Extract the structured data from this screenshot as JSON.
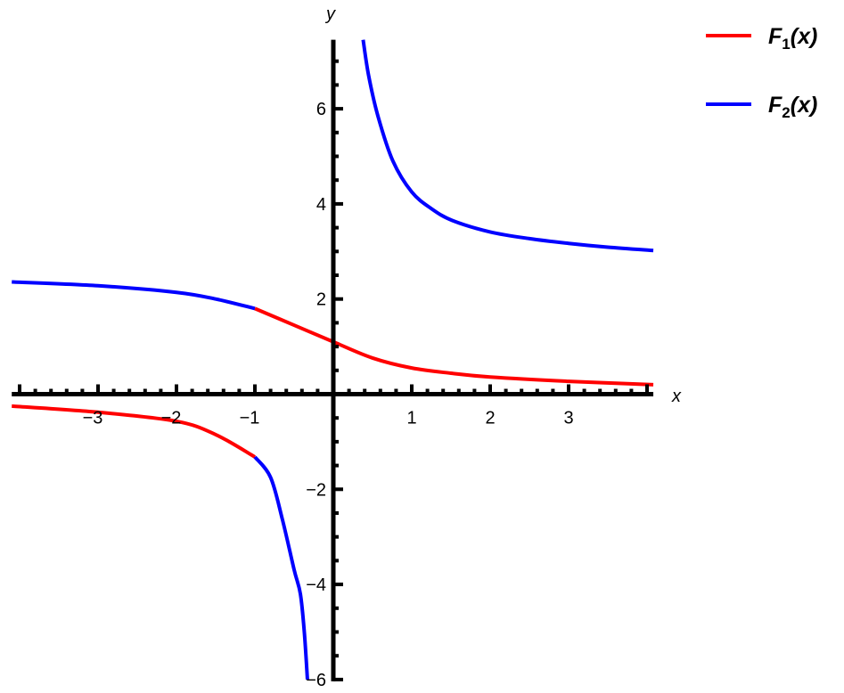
{
  "chart_data": {
    "type": "line",
    "title": "",
    "xlabel": "x",
    "ylabel": "y",
    "xlim": [
      -4.1,
      4.08
    ],
    "ylim": [
      -6,
      7.45
    ],
    "grid": false,
    "legend_position": "top-right",
    "x_ticks": [
      -3,
      -2,
      -1,
      1,
      2,
      3
    ],
    "x_tick_labels": [
      "−3",
      "−2",
      "−1",
      "1",
      "2",
      "3"
    ],
    "y_ticks": [
      -6,
      -4,
      -2,
      2,
      4,
      6
    ],
    "y_tick_labels": [
      "−6",
      "−4",
      "−2",
      "2",
      "4",
      "6"
    ],
    "series": [
      {
        "name": "F1(x)",
        "name_main": "F",
        "name_sub": "1",
        "name_arg": "(x)",
        "color": "#ff0000",
        "segments": [
          [
            [
              -1,
              1.8
            ],
            [
              -0.5,
              1.45
            ],
            [
              0,
              1.1
            ],
            [
              0.5,
              0.76
            ],
            [
              1,
              0.55
            ],
            [
              1.5,
              0.44
            ],
            [
              2,
              0.36
            ],
            [
              3,
              0.27
            ],
            [
              4.08,
              0.2
            ]
          ],
          [
            [
              -4.1,
              -0.25
            ],
            [
              -3,
              -0.38
            ],
            [
              -2,
              -0.57
            ],
            [
              -1.5,
              -0.85
            ],
            [
              -1,
              -1.32
            ]
          ]
        ]
      },
      {
        "name": "F2(x)",
        "name_main": "F",
        "name_sub": "2",
        "name_arg": "(x)",
        "color": "#0000ff",
        "segments": [
          [
            [
              -4.1,
              2.36
            ],
            [
              -3,
              2.28
            ],
            [
              -2,
              2.14
            ],
            [
              -1.5,
              2.0
            ],
            [
              -1,
              1.8
            ]
          ],
          [
            [
              -1,
              -1.32
            ],
            [
              -0.8,
              -1.75
            ],
            [
              -0.65,
              -2.63
            ],
            [
              -0.5,
              -3.69
            ],
            [
              -0.42,
              -4.2
            ],
            [
              -0.37,
              -5.0
            ],
            [
              -0.33,
              -6.0
            ]
          ],
          [
            [
              0.38,
              7.45
            ],
            [
              0.45,
              6.7
            ],
            [
              0.57,
              5.84
            ],
            [
              0.76,
              4.9
            ],
            [
              1,
              4.25
            ],
            [
              1.25,
              3.9
            ],
            [
              1.52,
              3.65
            ],
            [
              2,
              3.41
            ],
            [
              2.5,
              3.27
            ],
            [
              3,
              3.17
            ],
            [
              3.5,
              3.09
            ],
            [
              4.08,
              3.02
            ]
          ]
        ]
      }
    ]
  }
}
